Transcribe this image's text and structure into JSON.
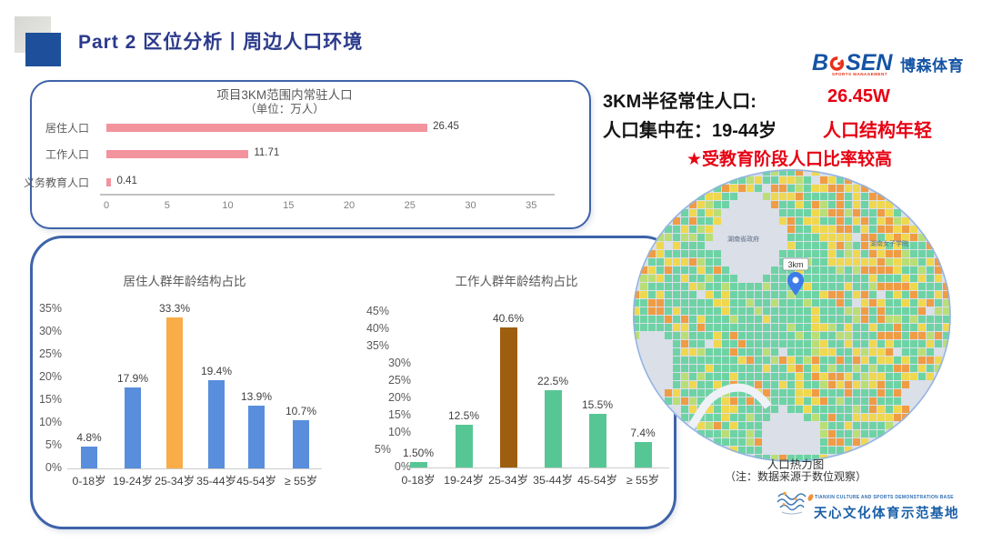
{
  "header": {
    "title": "Part 2 区位分析丨周边人口环境"
  },
  "bosen_logo": {
    "word_left": "B",
    "word_right": "SEN",
    "sub": "SPORTS MANAGEMENT",
    "cn": "博森体育"
  },
  "summary": {
    "line1_label": "3KM半径常住人口:",
    "line1_value": "26.45W",
    "line2_label": "人口集中在：19-44岁",
    "line2_value": "人口结构年轻",
    "line3": "★受教育阶段人口比率较高"
  },
  "chart_data": [
    {
      "id": "population_3km",
      "type": "bar",
      "orientation": "horizontal",
      "title": "项目3KM范围内常驻人口",
      "subtitle": "（单位：万人）",
      "categories": [
        "居住人口",
        "工作人口",
        "义务教育人口"
      ],
      "values": [
        26.45,
        11.71,
        0.41
      ],
      "value_labels": [
        "26.45",
        "11.71",
        "0.41"
      ],
      "xlim": [
        0,
        35
      ],
      "xticks": [
        0,
        5,
        10,
        15,
        20,
        25,
        30,
        35
      ],
      "bar_color": "#f2939e",
      "grid": false
    },
    {
      "id": "resident_age",
      "type": "bar",
      "title": "居住人群年龄结构占比",
      "categories": [
        "0-18岁",
        "19-24岁",
        "25-34岁",
        "35-44岁",
        "45-54岁",
        "≥ 55岁"
      ],
      "values": [
        4.8,
        17.9,
        33.3,
        19.4,
        13.9,
        10.7
      ],
      "value_labels": [
        "4.8%",
        "17.9%",
        "33.3%",
        "19.4%",
        "13.9%",
        "10.7%"
      ],
      "ylim": [
        0,
        35
      ],
      "yticks": [
        "35%",
        "30%",
        "25%",
        "20%",
        "15%",
        "10%",
        "5%",
        "0%"
      ],
      "bar_color": "#588edc",
      "highlight_index": 2,
      "highlight_color": "#f9ac48",
      "grid": false
    },
    {
      "id": "worker_age",
      "type": "bar",
      "title": "工作人群年龄结构占比",
      "categories": [
        "0-18岁",
        "19-24岁",
        "25-34岁",
        "35-44岁",
        "45-54岁",
        "≥ 55岁"
      ],
      "values": [
        1.5,
        12.5,
        40.6,
        22.5,
        15.5,
        7.4
      ],
      "value_labels": [
        "1.50%",
        "12.5%",
        "40.6%",
        "22.5%",
        "15.5%",
        "7.4%"
      ],
      "ylim": [
        0,
        45
      ],
      "yticks": [
        "45%",
        "40%",
        "35%",
        "30%",
        "25%",
        "20%",
        "15%",
        "10%",
        "5%",
        "0%"
      ],
      "bar_color": "#57c695",
      "highlight_index": 2,
      "highlight_color": "#9e5e0f",
      "grid": false
    }
  ],
  "heatmap": {
    "caption_line1": "人口热力图",
    "caption_line2": "（注：数据来源于数位观察）",
    "pin_label": "3km",
    "map_labels": [
      "湖南省政府",
      "湖南女子学院"
    ],
    "colors": {
      "green": "#6ed3a4",
      "light_green": "#bade76",
      "yellow": "#efd84f",
      "orange": "#ef9c44",
      "gray": "#dadfe8"
    }
  },
  "footer_logo": {
    "en": "TIANXIN CULTURE AND SPORTS DEMONSTRATION BASE",
    "cn": "天心文化体育示范基地"
  }
}
